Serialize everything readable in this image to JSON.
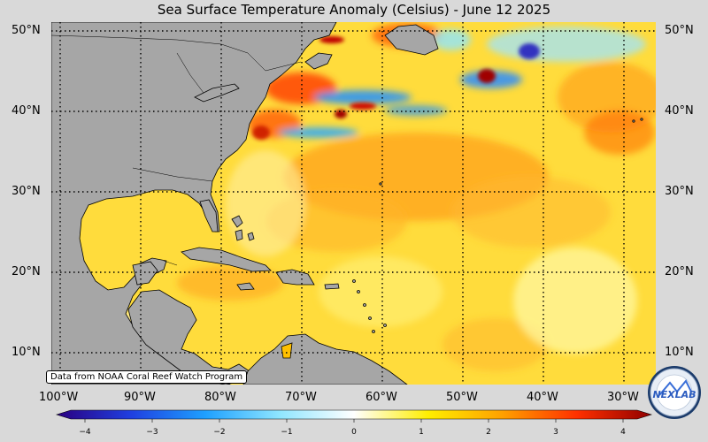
{
  "title": "Sea Surface Temperature Anomaly (Celsius) - June 12 2025",
  "source_note": "Data from NOAA Coral Reef Watch Program",
  "logo_text": "NEXLAB",
  "lat_labels": [
    "50°N",
    "40°N",
    "30°N",
    "20°N",
    "10°N"
  ],
  "lon_labels": [
    "100°W",
    "90°W",
    "80°W",
    "70°W",
    "60°W",
    "50°W",
    "40°W",
    "30°W"
  ],
  "colorbar": {
    "ticks": [
      "−4",
      "−3",
      "−2",
      "−1",
      "0",
      "1",
      "2",
      "3",
      "4"
    ],
    "range": [
      -4,
      4
    ],
    "colors": [
      "#2a0080",
      "#1f3fe0",
      "#1ea0ff",
      "#8fe6ff",
      "#ffffff",
      "#ffee00",
      "#ffa000",
      "#ff3000",
      "#900000"
    ]
  },
  "colors": {
    "land": "#a6a6a6",
    "ocean_base": "#ffdc3c",
    "background": "#d9d9d9"
  }
}
